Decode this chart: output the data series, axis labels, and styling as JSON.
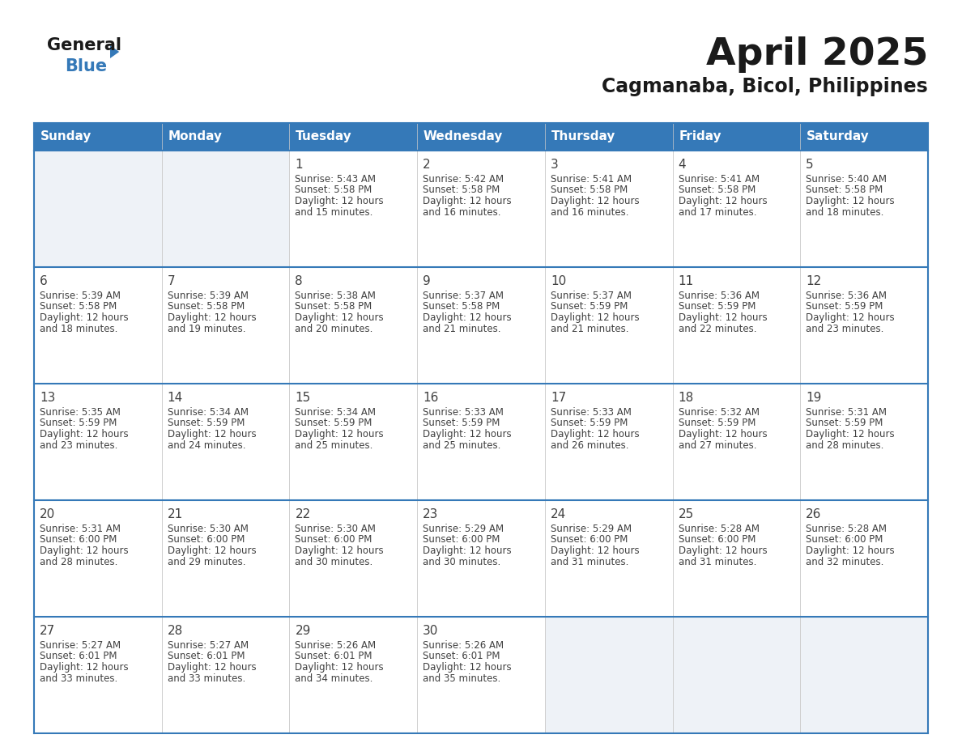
{
  "title": "April 2025",
  "subtitle": "Cagmanaba, Bicol, Philippines",
  "header_bg": "#3579B8",
  "header_text_color": "#FFFFFF",
  "cell_bg_white": "#FFFFFF",
  "cell_bg_light": "#EEF2F7",
  "border_color": "#3579B8",
  "text_color": "#404040",
  "day_headers": [
    "Sunday",
    "Monday",
    "Tuesday",
    "Wednesday",
    "Thursday",
    "Friday",
    "Saturday"
  ],
  "weeks": [
    [
      {
        "day": "",
        "sunrise": "",
        "sunset": "",
        "daylight": ""
      },
      {
        "day": "",
        "sunrise": "",
        "sunset": "",
        "daylight": ""
      },
      {
        "day": "1",
        "sunrise": "Sunrise: 5:43 AM",
        "sunset": "Sunset: 5:58 PM",
        "daylight": "Daylight: 12 hours\nand 15 minutes."
      },
      {
        "day": "2",
        "sunrise": "Sunrise: 5:42 AM",
        "sunset": "Sunset: 5:58 PM",
        "daylight": "Daylight: 12 hours\nand 16 minutes."
      },
      {
        "day": "3",
        "sunrise": "Sunrise: 5:41 AM",
        "sunset": "Sunset: 5:58 PM",
        "daylight": "Daylight: 12 hours\nand 16 minutes."
      },
      {
        "day": "4",
        "sunrise": "Sunrise: 5:41 AM",
        "sunset": "Sunset: 5:58 PM",
        "daylight": "Daylight: 12 hours\nand 17 minutes."
      },
      {
        "day": "5",
        "sunrise": "Sunrise: 5:40 AM",
        "sunset": "Sunset: 5:58 PM",
        "daylight": "Daylight: 12 hours\nand 18 minutes."
      }
    ],
    [
      {
        "day": "6",
        "sunrise": "Sunrise: 5:39 AM",
        "sunset": "Sunset: 5:58 PM",
        "daylight": "Daylight: 12 hours\nand 18 minutes."
      },
      {
        "day": "7",
        "sunrise": "Sunrise: 5:39 AM",
        "sunset": "Sunset: 5:58 PM",
        "daylight": "Daylight: 12 hours\nand 19 minutes."
      },
      {
        "day": "8",
        "sunrise": "Sunrise: 5:38 AM",
        "sunset": "Sunset: 5:58 PM",
        "daylight": "Daylight: 12 hours\nand 20 minutes."
      },
      {
        "day": "9",
        "sunrise": "Sunrise: 5:37 AM",
        "sunset": "Sunset: 5:58 PM",
        "daylight": "Daylight: 12 hours\nand 21 minutes."
      },
      {
        "day": "10",
        "sunrise": "Sunrise: 5:37 AM",
        "sunset": "Sunset: 5:59 PM",
        "daylight": "Daylight: 12 hours\nand 21 minutes."
      },
      {
        "day": "11",
        "sunrise": "Sunrise: 5:36 AM",
        "sunset": "Sunset: 5:59 PM",
        "daylight": "Daylight: 12 hours\nand 22 minutes."
      },
      {
        "day": "12",
        "sunrise": "Sunrise: 5:36 AM",
        "sunset": "Sunset: 5:59 PM",
        "daylight": "Daylight: 12 hours\nand 23 minutes."
      }
    ],
    [
      {
        "day": "13",
        "sunrise": "Sunrise: 5:35 AM",
        "sunset": "Sunset: 5:59 PM",
        "daylight": "Daylight: 12 hours\nand 23 minutes."
      },
      {
        "day": "14",
        "sunrise": "Sunrise: 5:34 AM",
        "sunset": "Sunset: 5:59 PM",
        "daylight": "Daylight: 12 hours\nand 24 minutes."
      },
      {
        "day": "15",
        "sunrise": "Sunrise: 5:34 AM",
        "sunset": "Sunset: 5:59 PM",
        "daylight": "Daylight: 12 hours\nand 25 minutes."
      },
      {
        "day": "16",
        "sunrise": "Sunrise: 5:33 AM",
        "sunset": "Sunset: 5:59 PM",
        "daylight": "Daylight: 12 hours\nand 25 minutes."
      },
      {
        "day": "17",
        "sunrise": "Sunrise: 5:33 AM",
        "sunset": "Sunset: 5:59 PM",
        "daylight": "Daylight: 12 hours\nand 26 minutes."
      },
      {
        "day": "18",
        "sunrise": "Sunrise: 5:32 AM",
        "sunset": "Sunset: 5:59 PM",
        "daylight": "Daylight: 12 hours\nand 27 minutes."
      },
      {
        "day": "19",
        "sunrise": "Sunrise: 5:31 AM",
        "sunset": "Sunset: 5:59 PM",
        "daylight": "Daylight: 12 hours\nand 28 minutes."
      }
    ],
    [
      {
        "day": "20",
        "sunrise": "Sunrise: 5:31 AM",
        "sunset": "Sunset: 6:00 PM",
        "daylight": "Daylight: 12 hours\nand 28 minutes."
      },
      {
        "day": "21",
        "sunrise": "Sunrise: 5:30 AM",
        "sunset": "Sunset: 6:00 PM",
        "daylight": "Daylight: 12 hours\nand 29 minutes."
      },
      {
        "day": "22",
        "sunrise": "Sunrise: 5:30 AM",
        "sunset": "Sunset: 6:00 PM",
        "daylight": "Daylight: 12 hours\nand 30 minutes."
      },
      {
        "day": "23",
        "sunrise": "Sunrise: 5:29 AM",
        "sunset": "Sunset: 6:00 PM",
        "daylight": "Daylight: 12 hours\nand 30 minutes."
      },
      {
        "day": "24",
        "sunrise": "Sunrise: 5:29 AM",
        "sunset": "Sunset: 6:00 PM",
        "daylight": "Daylight: 12 hours\nand 31 minutes."
      },
      {
        "day": "25",
        "sunrise": "Sunrise: 5:28 AM",
        "sunset": "Sunset: 6:00 PM",
        "daylight": "Daylight: 12 hours\nand 31 minutes."
      },
      {
        "day": "26",
        "sunrise": "Sunrise: 5:28 AM",
        "sunset": "Sunset: 6:00 PM",
        "daylight": "Daylight: 12 hours\nand 32 minutes."
      }
    ],
    [
      {
        "day": "27",
        "sunrise": "Sunrise: 5:27 AM",
        "sunset": "Sunset: 6:01 PM",
        "daylight": "Daylight: 12 hours\nand 33 minutes."
      },
      {
        "day": "28",
        "sunrise": "Sunrise: 5:27 AM",
        "sunset": "Sunset: 6:01 PM",
        "daylight": "Daylight: 12 hours\nand 33 minutes."
      },
      {
        "day": "29",
        "sunrise": "Sunrise: 5:26 AM",
        "sunset": "Sunset: 6:01 PM",
        "daylight": "Daylight: 12 hours\nand 34 minutes."
      },
      {
        "day": "30",
        "sunrise": "Sunrise: 5:26 AM",
        "sunset": "Sunset: 6:01 PM",
        "daylight": "Daylight: 12 hours\nand 35 minutes."
      },
      {
        "day": "",
        "sunrise": "",
        "sunset": "",
        "daylight": ""
      },
      {
        "day": "",
        "sunrise": "",
        "sunset": "",
        "daylight": ""
      },
      {
        "day": "",
        "sunrise": "",
        "sunset": "",
        "daylight": ""
      }
    ]
  ],
  "logo_general_color": "#1a1a1a",
  "logo_blue_color": "#3579B8",
  "logo_triangle_color": "#3579B8",
  "title_fontsize": 34,
  "subtitle_fontsize": 17,
  "header_fontsize": 11,
  "day_num_fontsize": 11,
  "cell_text_fontsize": 8.5
}
